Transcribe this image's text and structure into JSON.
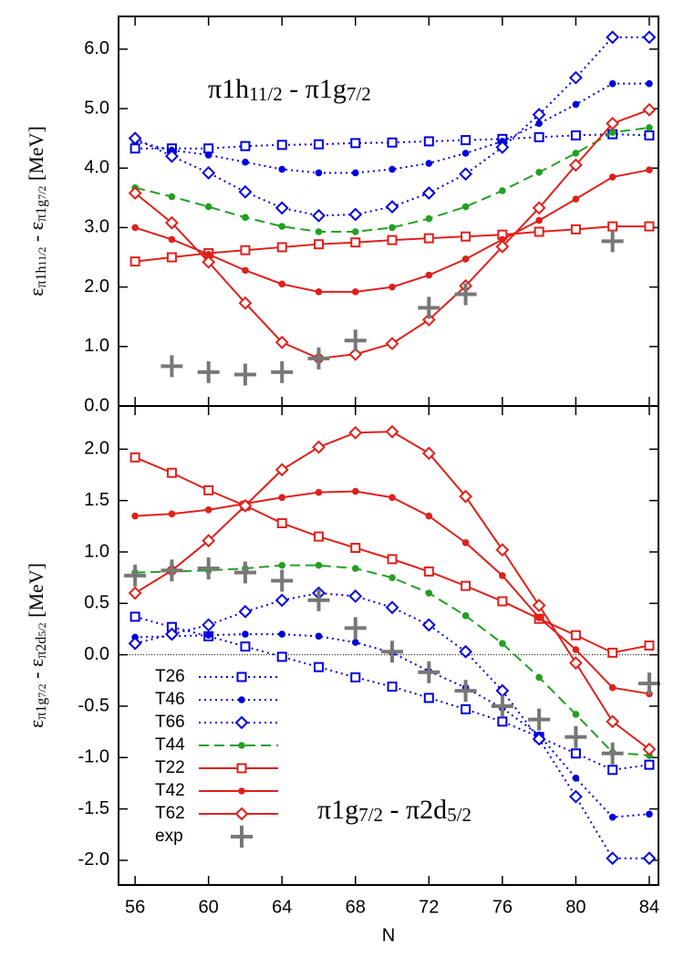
{
  "chart_data": [
    {
      "type": "line",
      "annotation": [
        [
          "π1h",
          0
        ],
        [
          "11/2",
          1
        ],
        [
          " - π1g",
          0
        ],
        [
          "7/2",
          1
        ]
      ],
      "ylabel": [
        [
          "ε",
          0
        ],
        [
          "π1h",
          1
        ],
        [
          "11/2",
          2
        ],
        [
          " - ε",
          0
        ],
        [
          "π1g",
          1
        ],
        [
          "7/2",
          2
        ],
        [
          " [MeV]",
          0
        ]
      ],
      "x": [
        56,
        58,
        60,
        62,
        64,
        66,
        68,
        70,
        72,
        74,
        76,
        78,
        80,
        82,
        84
      ],
      "xlim": [
        55.1,
        84.5
      ],
      "ylim": [
        0,
        6.55
      ],
      "yticks": [
        {
          "value": 0,
          "label": "0.0"
        },
        {
          "value": 1,
          "label": "1.0"
        },
        {
          "value": 2,
          "label": "2.0"
        },
        {
          "value": 3,
          "label": "3.0"
        },
        {
          "value": 4,
          "label": "4.0"
        },
        {
          "value": 5,
          "label": "5.0"
        },
        {
          "value": 6,
          "label": "6.0"
        }
      ],
      "series": [
        {
          "name": "T26",
          "color": "#0000dd",
          "dash": "dotted",
          "marker": "square",
          "values": [
            4.33,
            4.33,
            4.33,
            4.37,
            4.39,
            4.4,
            4.42,
            4.43,
            4.45,
            4.47,
            4.49,
            4.52,
            4.55,
            4.57,
            4.55
          ]
        },
        {
          "name": "T46",
          "color": "#0000dd",
          "dash": "dotted",
          "marker": "circle",
          "values": [
            4.45,
            4.3,
            4.22,
            4.1,
            3.98,
            3.92,
            3.92,
            3.98,
            4.08,
            4.25,
            4.45,
            4.75,
            5.07,
            5.42,
            5.42
          ]
        },
        {
          "name": "T66",
          "color": "#0000dd",
          "dash": "dotted",
          "marker": "diamond",
          "values": [
            4.5,
            4.2,
            3.92,
            3.6,
            3.33,
            3.2,
            3.22,
            3.35,
            3.58,
            3.9,
            4.35,
            4.9,
            5.52,
            6.2,
            6.2
          ]
        },
        {
          "name": "T44",
          "color": "#22a022",
          "dash": "dashed",
          "marker": "circle",
          "values": [
            3.67,
            3.52,
            3.35,
            3.17,
            3.02,
            2.93,
            2.93,
            3.0,
            3.15,
            3.35,
            3.62,
            3.93,
            4.25,
            4.6,
            4.68
          ]
        },
        {
          "name": "T22",
          "color": "#e0201b",
          "dash": "solid",
          "marker": "square",
          "values": [
            2.43,
            2.5,
            2.57,
            2.62,
            2.67,
            2.72,
            2.75,
            2.79,
            2.82,
            2.85,
            2.88,
            2.93,
            2.97,
            3.02,
            3.02
          ]
        },
        {
          "name": "T42",
          "color": "#e0201b",
          "dash": "solid",
          "marker": "circle",
          "values": [
            3.0,
            2.8,
            2.55,
            2.28,
            2.05,
            1.92,
            1.92,
            2.0,
            2.2,
            2.47,
            2.8,
            3.12,
            3.48,
            3.85,
            3.97
          ]
        },
        {
          "name": "T62",
          "color": "#e0201b",
          "dash": "solid",
          "marker": "diamond",
          "values": [
            3.58,
            3.08,
            2.42,
            1.73,
            1.07,
            0.8,
            0.87,
            1.05,
            1.45,
            2.02,
            2.68,
            3.33,
            4.05,
            4.75,
            4.98
          ]
        },
        {
          "name": "exp",
          "color": "#777777",
          "dash": "none",
          "marker": "plus",
          "values": [
            null,
            0.67,
            0.57,
            0.53,
            0.57,
            0.8,
            1.1,
            null,
            1.65,
            1.88,
            null,
            null,
            null,
            2.77,
            null
          ]
        }
      ]
    },
    {
      "type": "line",
      "annotation": [
        [
          "π1g",
          0
        ],
        [
          "7/2",
          1
        ],
        [
          " - π2d",
          0
        ],
        [
          "5/2",
          1
        ]
      ],
      "ylabel": [
        [
          "ε",
          0
        ],
        [
          "π1g",
          1
        ],
        [
          "7/2",
          2
        ],
        [
          " - ε",
          0
        ],
        [
          "π2d",
          1
        ],
        [
          "5/2",
          2
        ],
        [
          " [MeV]",
          0
        ]
      ],
      "xlabel": "N",
      "x": [
        56,
        58,
        60,
        62,
        64,
        66,
        68,
        70,
        72,
        74,
        76,
        78,
        80,
        82,
        84
      ],
      "xlim": [
        55.1,
        84.5
      ],
      "xticks": [
        56,
        60,
        64,
        68,
        72,
        76,
        80,
        84
      ],
      "ylim": [
        -2.24,
        2.42
      ],
      "yticks": [
        {
          "value": -2,
          "label": "-2.0"
        },
        -1.5,
        {
          "value": -1,
          "label": "-1.0"
        },
        -0.5,
        {
          "value": 0,
          "label": "0.0"
        },
        0.5,
        {
          "value": 1,
          "label": "1.0"
        },
        1.5,
        {
          "value": 2,
          "label": "2.0"
        }
      ],
      "zero_line": true,
      "legend": "lower left",
      "series": [
        {
          "name": "T26",
          "color": "#0000dd",
          "dash": "dotted",
          "marker": "square",
          "values": [
            0.37,
            0.27,
            0.18,
            0.08,
            -0.02,
            -0.12,
            -0.22,
            -0.31,
            -0.42,
            -0.53,
            -0.65,
            -0.8,
            -0.96,
            -1.12,
            -1.07
          ]
        },
        {
          "name": "T46",
          "color": "#0000dd",
          "dash": "dotted",
          "marker": "circle",
          "values": [
            0.17,
            0.18,
            0.19,
            0.2,
            0.2,
            0.18,
            0.12,
            0.02,
            -0.16,
            -0.32,
            -0.52,
            -0.78,
            -1.2,
            -1.58,
            -1.55
          ]
        },
        {
          "name": "T66",
          "color": "#0000dd",
          "dash": "dotted",
          "marker": "diamond",
          "values": [
            0.11,
            0.2,
            0.29,
            0.42,
            0.53,
            0.6,
            0.57,
            0.46,
            0.29,
            0.03,
            -0.35,
            -0.82,
            -1.38,
            -1.98,
            -1.98
          ]
        },
        {
          "name": "T44",
          "color": "#22a022",
          "dash": "dashed",
          "marker": "circle",
          "values": [
            0.8,
            0.81,
            0.82,
            0.84,
            0.87,
            0.87,
            0.84,
            0.75,
            0.6,
            0.38,
            0.11,
            -0.22,
            -0.58,
            -0.95,
            -0.98
          ]
        },
        {
          "name": "T22",
          "color": "#e0201b",
          "dash": "solid",
          "marker": "square",
          "values": [
            1.92,
            1.77,
            1.6,
            1.45,
            1.28,
            1.15,
            1.04,
            0.93,
            0.81,
            0.67,
            0.52,
            0.35,
            0.19,
            0.02,
            0.09
          ]
        },
        {
          "name": "T42",
          "color": "#e0201b",
          "dash": "solid",
          "marker": "circle",
          "values": [
            1.35,
            1.37,
            1.41,
            1.47,
            1.53,
            1.58,
            1.59,
            1.53,
            1.35,
            1.09,
            0.77,
            0.36,
            0.05,
            -0.32,
            -0.38
          ]
        },
        {
          "name": "T62",
          "color": "#e0201b",
          "dash": "solid",
          "marker": "diamond",
          "values": [
            0.6,
            0.82,
            1.11,
            1.45,
            1.8,
            2.02,
            2.16,
            2.17,
            1.96,
            1.54,
            1.02,
            0.48,
            -0.08,
            -0.65,
            -0.92
          ]
        },
        {
          "name": "exp",
          "color": "#777777",
          "dash": "none",
          "marker": "plus",
          "values": [
            0.77,
            0.82,
            0.84,
            0.8,
            0.72,
            0.53,
            0.26,
            0.03,
            -0.17,
            -0.35,
            -0.5,
            -0.63,
            -0.8,
            -0.96,
            -0.28
          ]
        }
      ]
    }
  ]
}
